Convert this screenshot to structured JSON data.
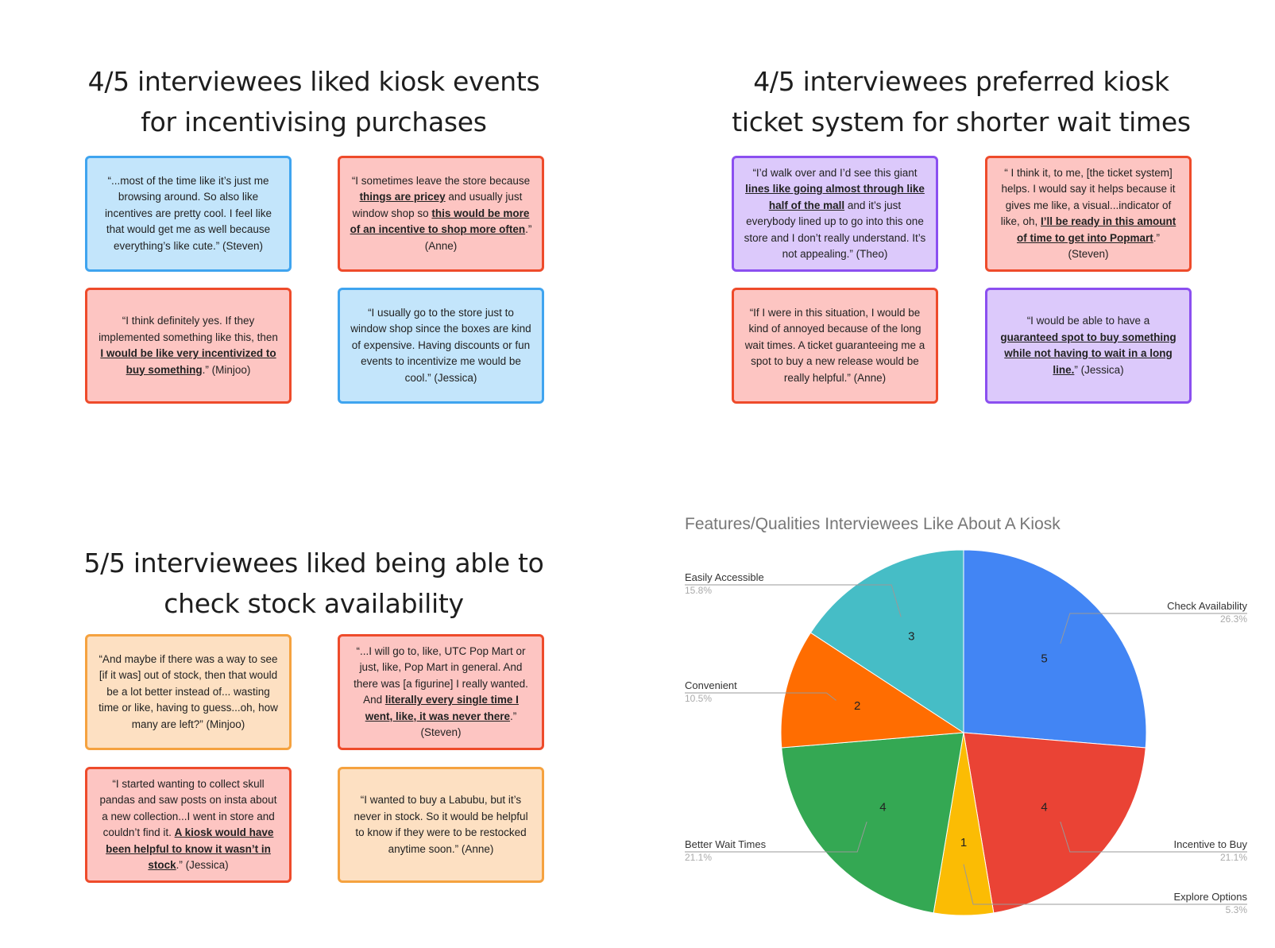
{
  "sections": [
    {
      "title_l1": "4/5 interviewees liked kiosk events",
      "title_l2": "for incentivising purchases",
      "cards": [
        {
          "parts": [
            {
              "t": "“...most of the time like it’s just me browsing around. So also like incentives are pretty cool. I feel like that would get me as well because everything’s like cute.” (Steven)",
              "b": false
            }
          ]
        },
        {
          "parts": [
            {
              "t": "“I sometimes leave the store because ",
              "b": false
            },
            {
              "t": "things are pricey",
              "b": true
            },
            {
              "t": " and usually just window shop so ",
              "b": false
            },
            {
              "t": "this would be more of an incentive to shop more often",
              "b": true
            },
            {
              "t": ".” (Anne)",
              "b": false
            }
          ]
        },
        {
          "parts": [
            {
              "t": "“I think definitely yes. If they implemented something like this, then ",
              "b": false
            },
            {
              "t": "I would be like very incentivized to buy something",
              "b": true
            },
            {
              "t": ".” (Minjoo)",
              "b": false
            }
          ]
        },
        {
          "parts": [
            {
              "t": "“I usually go to the store just to window shop since the boxes are kind of expensive. Having discounts or fun events to incentivize me would be cool.” (Jessica)",
              "b": false
            }
          ]
        }
      ]
    },
    {
      "title_l1": "4/5 interviewees preferred kiosk",
      "title_l2": "ticket system for shorter wait times",
      "cards": [
        {
          "parts": [
            {
              "t": "“I’d walk over and I’d see this giant ",
              "b": false
            },
            {
              "t": "lines like going almost through like half of the mall",
              "b": true
            },
            {
              "t": " and it’s just everybody lined up to go into this one store and I don’t really understand. It’s not appealing.” (Theo)",
              "b": false
            }
          ]
        },
        {
          "parts": [
            {
              "t": "“ I think it, to me, [the ticket system] helps. I would say it helps because it gives me like, a visual...indicator of like, oh, ",
              "b": false
            },
            {
              "t": "I’ll be ready in this amount of time to get into Popmart",
              "b": true
            },
            {
              "t": ".” (Steven)",
              "b": false
            }
          ]
        },
        {
          "parts": [
            {
              "t": "“If I were in this situation, I would be kind of annoyed because of the long wait times. A ticket guaranteeing me a spot to buy a new release would be really helpful.” (Anne)",
              "b": false
            }
          ]
        },
        {
          "parts": [
            {
              "t": "“I would be able to have a ",
              "b": false
            },
            {
              "t": "guaranteed spot to buy something while not having to wait in a long line.",
              "b": true
            },
            {
              "t": "” (Jessica)",
              "b": false
            }
          ]
        }
      ]
    },
    {
      "title_l1": "5/5 interviewees liked being able to",
      "title_l2": "check stock availability",
      "cards": [
        {
          "parts": [
            {
              "t": "“And maybe if there was a way to see [if it was] out of stock, then that would be a lot better instead of... wasting time or like, having to guess...oh, how many are left?” (Minjoo)",
              "b": false
            }
          ]
        },
        {
          "parts": [
            {
              "t": "“...I will go to, like, UTC Pop Mart or just, like, Pop Mart in general. And there was [a figurine] I really wanted. And ",
              "b": false
            },
            {
              "t": "literally every single time I went, like, it was never there",
              "b": true
            },
            {
              "t": ".” (Steven)",
              "b": false
            }
          ]
        },
        {
          "parts": [
            {
              "t": "“I started wanting to collect skull pandas and saw posts on insta about a new collection...I went in store and couldn’t find it. ",
              "b": false
            },
            {
              "t": "A kiosk would have been helpful to know it wasn’t in stock",
              "b": true
            },
            {
              "t": ".” (Jessica)",
              "b": false
            }
          ]
        },
        {
          "parts": [
            {
              "t": "“I wanted to buy a Labubu, but it’s never in stock. So it would be helpful to know if they were to be restocked anytime soon.” (Anne)",
              "b": false
            }
          ]
        }
      ]
    }
  ],
  "chart_data": {
    "type": "pie",
    "title": "Features/Qualities Interviewees Like About A Kiosk",
    "slices": [
      {
        "label": "Check Availability",
        "value": 5,
        "percent": "26.3%",
        "color": "#4285f4"
      },
      {
        "label": "Incentive to Buy",
        "value": 4,
        "percent": "21.1%",
        "color": "#ea4335"
      },
      {
        "label": "Explore Options",
        "value": 1,
        "percent": "5.3%",
        "color": "#fbbc04"
      },
      {
        "label": "Better Wait Times",
        "value": 4,
        "percent": "21.1%",
        "color": "#34a853"
      },
      {
        "label": "Convenient",
        "value": 2,
        "percent": "10.5%",
        "color": "#ff6d01"
      },
      {
        "label": "Easily Accessible",
        "value": 3,
        "percent": "15.8%",
        "color": "#46bdc6"
      }
    ]
  }
}
